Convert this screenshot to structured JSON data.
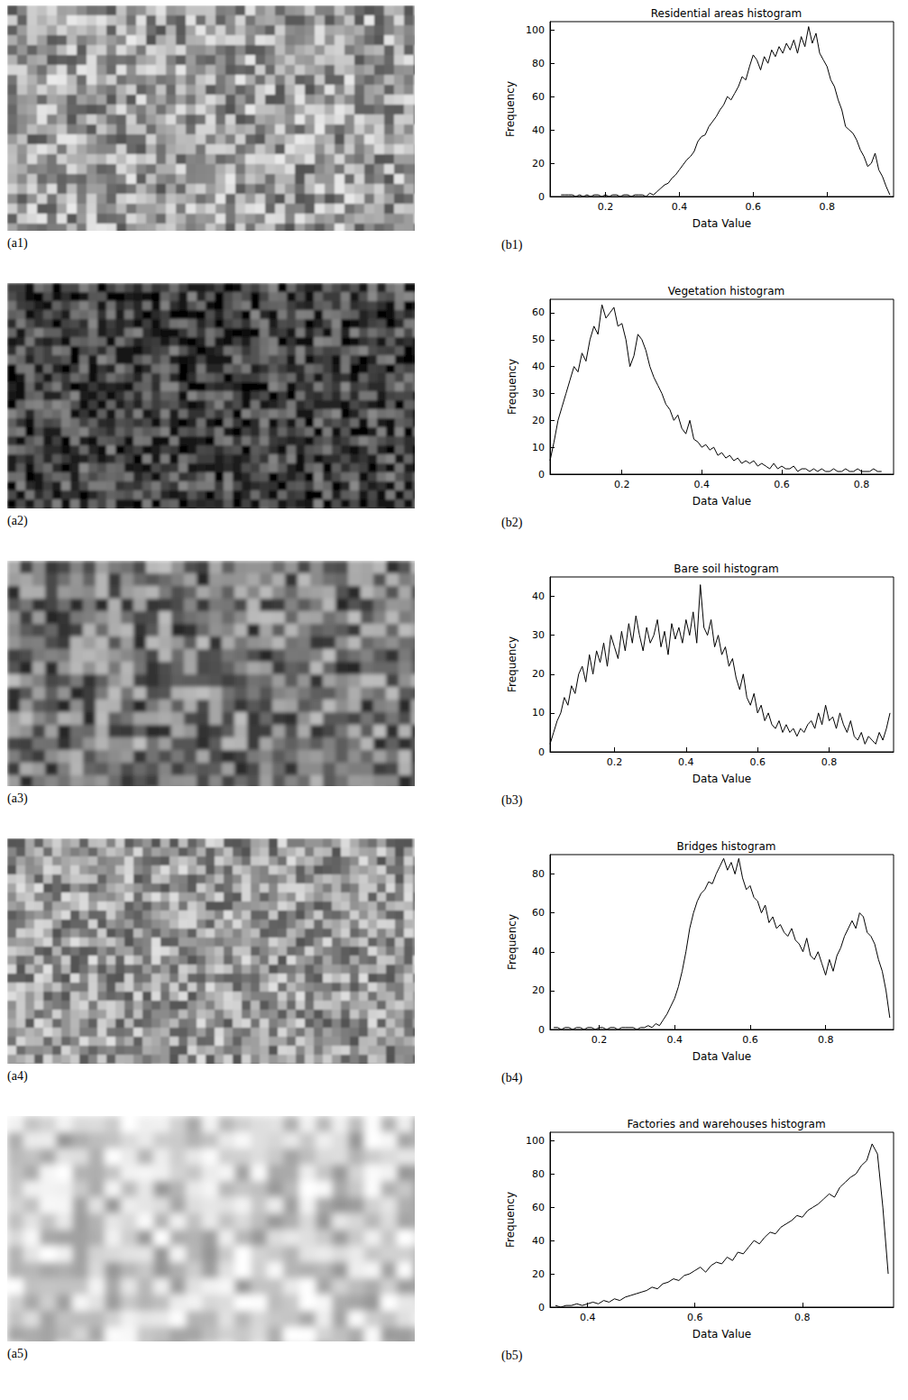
{
  "images": [
    {
      "label": "(a1)"
    },
    {
      "label": "(a2)"
    },
    {
      "label": "(a3)"
    },
    {
      "label": "(a4)"
    },
    {
      "label": "(a5)"
    }
  ],
  "chart_data": [
    {
      "type": "line",
      "title": "Residential areas histogram",
      "panel": "(b1)",
      "xlabel": "Data Value",
      "ylabel": "Frequency",
      "color": "#000000",
      "grid": false,
      "xlim": [
        0.05,
        0.98
      ],
      "ylim": [
        0,
        105
      ],
      "xticks": [
        0.2,
        0.4,
        0.6,
        0.8
      ],
      "yticks": [
        0,
        20,
        40,
        60,
        80,
        100
      ],
      "x": [
        0.08,
        0.09,
        0.1,
        0.11,
        0.12,
        0.13,
        0.14,
        0.15,
        0.16,
        0.17,
        0.18,
        0.19,
        0.2,
        0.21,
        0.22,
        0.23,
        0.24,
        0.25,
        0.26,
        0.27,
        0.28,
        0.29,
        0.3,
        0.31,
        0.32,
        0.33,
        0.34,
        0.35,
        0.36,
        0.37,
        0.38,
        0.39,
        0.4,
        0.41,
        0.42,
        0.43,
        0.44,
        0.45,
        0.46,
        0.47,
        0.48,
        0.49,
        0.5,
        0.51,
        0.52,
        0.53,
        0.54,
        0.55,
        0.56,
        0.57,
        0.58,
        0.59,
        0.6,
        0.61,
        0.62,
        0.63,
        0.64,
        0.65,
        0.66,
        0.67,
        0.68,
        0.69,
        0.7,
        0.71,
        0.72,
        0.73,
        0.74,
        0.75,
        0.76,
        0.77,
        0.78,
        0.79,
        0.8,
        0.81,
        0.82,
        0.83,
        0.84,
        0.85,
        0.86,
        0.87,
        0.88,
        0.89,
        0.9,
        0.91,
        0.92,
        0.93,
        0.94,
        0.95,
        0.96,
        0.97
      ],
      "values": [
        1,
        1,
        1,
        1,
        0,
        1,
        0,
        1,
        0,
        1,
        1,
        0,
        1,
        0,
        1,
        1,
        0,
        1,
        1,
        0,
        1,
        1,
        1,
        0,
        2,
        1,
        3,
        5,
        7,
        8,
        11,
        13,
        16,
        19,
        22,
        24,
        27,
        33,
        36,
        37,
        42,
        45,
        48,
        52,
        55,
        60,
        58,
        62,
        66,
        72,
        70,
        78,
        85,
        82,
        76,
        84,
        80,
        88,
        84,
        90,
        86,
        92,
        88,
        94,
        86,
        96,
        90,
        102,
        92,
        98,
        86,
        82,
        78,
        70,
        66,
        58,
        52,
        42,
        40,
        38,
        34,
        28,
        24,
        18,
        20,
        26,
        16,
        12,
        6,
        1
      ]
    },
    {
      "type": "line",
      "title": "Vegetation histogram",
      "panel": "(b2)",
      "xlabel": "Data Value",
      "ylabel": "Frequency",
      "color": "#000000",
      "grid": false,
      "xlim": [
        0.02,
        0.88
      ],
      "ylim": [
        0,
        65
      ],
      "xticks": [
        0.2,
        0.4,
        0.6,
        0.8
      ],
      "yticks": [
        0,
        10,
        20,
        30,
        40,
        50,
        60
      ],
      "x": [
        0.02,
        0.03,
        0.04,
        0.05,
        0.06,
        0.07,
        0.08,
        0.09,
        0.1,
        0.11,
        0.12,
        0.13,
        0.14,
        0.15,
        0.16,
        0.17,
        0.18,
        0.19,
        0.2,
        0.21,
        0.22,
        0.23,
        0.24,
        0.25,
        0.26,
        0.27,
        0.28,
        0.29,
        0.3,
        0.31,
        0.32,
        0.33,
        0.34,
        0.35,
        0.36,
        0.37,
        0.38,
        0.39,
        0.4,
        0.41,
        0.42,
        0.43,
        0.44,
        0.45,
        0.46,
        0.47,
        0.48,
        0.49,
        0.5,
        0.51,
        0.52,
        0.53,
        0.54,
        0.55,
        0.56,
        0.57,
        0.58,
        0.59,
        0.6,
        0.61,
        0.62,
        0.63,
        0.64,
        0.65,
        0.66,
        0.67,
        0.68,
        0.69,
        0.7,
        0.71,
        0.72,
        0.73,
        0.74,
        0.75,
        0.76,
        0.77,
        0.78,
        0.79,
        0.8,
        0.81,
        0.82,
        0.83,
        0.84,
        0.85
      ],
      "values": [
        5,
        12,
        20,
        25,
        30,
        35,
        40,
        38,
        45,
        42,
        50,
        55,
        52,
        63,
        58,
        60,
        62,
        55,
        56,
        50,
        40,
        44,
        52,
        50,
        46,
        40,
        36,
        33,
        30,
        26,
        24,
        20,
        22,
        17,
        15,
        20,
        13,
        12,
        10,
        11,
        9,
        10,
        7,
        8,
        6,
        7,
        5,
        6,
        4,
        5,
        4,
        5,
        3,
        4,
        3,
        2,
        4,
        2,
        3,
        2,
        2,
        3,
        1,
        2,
        2,
        1,
        2,
        1,
        2,
        1,
        1,
        2,
        1,
        1,
        2,
        1,
        1,
        2,
        1,
        1,
        1,
        2,
        1,
        1
      ]
    },
    {
      "type": "line",
      "title": "Bare soil histogram",
      "panel": "(b3)",
      "xlabel": "Data Value",
      "ylabel": "Frequency",
      "color": "#000000",
      "grid": false,
      "xlim": [
        0.02,
        0.98
      ],
      "ylim": [
        0,
        45
      ],
      "xticks": [
        0.2,
        0.4,
        0.6,
        0.8
      ],
      "yticks": [
        0,
        10,
        20,
        30,
        40
      ],
      "x": [
        0.02,
        0.03,
        0.04,
        0.05,
        0.06,
        0.07,
        0.08,
        0.09,
        0.1,
        0.11,
        0.12,
        0.13,
        0.14,
        0.15,
        0.16,
        0.17,
        0.18,
        0.19,
        0.2,
        0.21,
        0.22,
        0.23,
        0.24,
        0.25,
        0.26,
        0.27,
        0.28,
        0.29,
        0.3,
        0.31,
        0.32,
        0.33,
        0.34,
        0.35,
        0.36,
        0.37,
        0.38,
        0.39,
        0.4,
        0.41,
        0.42,
        0.43,
        0.44,
        0.45,
        0.46,
        0.47,
        0.48,
        0.49,
        0.5,
        0.51,
        0.52,
        0.53,
        0.54,
        0.55,
        0.56,
        0.57,
        0.58,
        0.59,
        0.6,
        0.61,
        0.62,
        0.63,
        0.64,
        0.65,
        0.66,
        0.67,
        0.68,
        0.69,
        0.7,
        0.71,
        0.72,
        0.73,
        0.74,
        0.75,
        0.76,
        0.77,
        0.78,
        0.79,
        0.8,
        0.81,
        0.82,
        0.83,
        0.84,
        0.85,
        0.86,
        0.87,
        0.88,
        0.89,
        0.9,
        0.91,
        0.92,
        0.93,
        0.94,
        0.95,
        0.96,
        0.97
      ],
      "values": [
        2,
        5,
        8,
        10,
        14,
        12,
        17,
        15,
        20,
        22,
        18,
        25,
        20,
        26,
        23,
        28,
        22,
        30,
        27,
        24,
        31,
        26,
        33,
        28,
        35,
        30,
        26,
        32,
        28,
        30,
        34,
        27,
        31,
        25,
        33,
        29,
        32,
        28,
        34,
        30,
        36,
        28,
        43,
        32,
        30,
        34,
        27,
        30,
        25,
        27,
        22,
        24,
        19,
        16,
        20,
        14,
        12,
        15,
        10,
        12,
        8,
        10,
        7,
        6,
        8,
        5,
        7,
        5,
        6,
        4,
        6,
        5,
        7,
        8,
        6,
        10,
        7,
        12,
        8,
        9,
        6,
        10,
        7,
        5,
        8,
        4,
        3,
        5,
        2,
        4,
        3,
        2,
        5,
        3,
        6,
        10
      ]
    },
    {
      "type": "line",
      "title": "Bridges histogram",
      "panel": "(b4)",
      "xlabel": "Data Value",
      "ylabel": "Frequency",
      "color": "#000000",
      "grid": false,
      "xlim": [
        0.07,
        0.98
      ],
      "ylim": [
        0,
        90
      ],
      "xticks": [
        0.2,
        0.4,
        0.6,
        0.8
      ],
      "yticks": [
        0,
        20,
        40,
        60,
        80
      ],
      "x": [
        0.08,
        0.09,
        0.1,
        0.11,
        0.12,
        0.13,
        0.14,
        0.15,
        0.16,
        0.17,
        0.18,
        0.19,
        0.2,
        0.21,
        0.22,
        0.23,
        0.24,
        0.25,
        0.26,
        0.27,
        0.28,
        0.29,
        0.3,
        0.31,
        0.32,
        0.33,
        0.34,
        0.35,
        0.36,
        0.37,
        0.38,
        0.39,
        0.4,
        0.41,
        0.42,
        0.43,
        0.44,
        0.45,
        0.46,
        0.47,
        0.48,
        0.49,
        0.5,
        0.51,
        0.52,
        0.53,
        0.54,
        0.55,
        0.56,
        0.57,
        0.58,
        0.59,
        0.6,
        0.61,
        0.62,
        0.63,
        0.64,
        0.65,
        0.66,
        0.67,
        0.68,
        0.69,
        0.7,
        0.71,
        0.72,
        0.73,
        0.74,
        0.75,
        0.76,
        0.77,
        0.78,
        0.79,
        0.8,
        0.81,
        0.82,
        0.83,
        0.84,
        0.85,
        0.86,
        0.87,
        0.88,
        0.89,
        0.9,
        0.91,
        0.92,
        0.93,
        0.94,
        0.95,
        0.96,
        0.97
      ],
      "values": [
        1,
        1,
        0,
        1,
        1,
        0,
        1,
        1,
        0,
        1,
        1,
        0,
        1,
        1,
        0,
        1,
        1,
        0,
        1,
        1,
        1,
        1,
        0,
        1,
        1,
        2,
        1,
        3,
        2,
        5,
        8,
        12,
        16,
        22,
        30,
        40,
        52,
        60,
        66,
        70,
        72,
        76,
        75,
        80,
        84,
        88,
        82,
        86,
        80,
        88,
        78,
        72,
        74,
        68,
        66,
        60,
        64,
        55,
        58,
        52,
        54,
        50,
        48,
        52,
        46,
        44,
        40,
        47,
        38,
        36,
        40,
        34,
        28,
        36,
        30,
        38,
        42,
        48,
        52,
        56,
        52,
        60,
        58,
        50,
        48,
        44,
        36,
        30,
        20,
        6
      ]
    },
    {
      "type": "line",
      "title": "Factories and warehouses histogram",
      "panel": "(b5)",
      "xlabel": "Data Value",
      "ylabel": "Frequency",
      "color": "#000000",
      "grid": false,
      "xlim": [
        0.33,
        0.97
      ],
      "ylim": [
        0,
        105
      ],
      "xticks": [
        0.4,
        0.6,
        0.8
      ],
      "yticks": [
        0,
        20,
        40,
        60,
        80,
        100
      ],
      "x": [
        0.34,
        0.35,
        0.36,
        0.37,
        0.38,
        0.39,
        0.4,
        0.41,
        0.42,
        0.43,
        0.44,
        0.45,
        0.46,
        0.47,
        0.48,
        0.49,
        0.5,
        0.51,
        0.52,
        0.53,
        0.54,
        0.55,
        0.56,
        0.57,
        0.58,
        0.59,
        0.6,
        0.61,
        0.62,
        0.63,
        0.64,
        0.65,
        0.66,
        0.67,
        0.68,
        0.69,
        0.7,
        0.71,
        0.72,
        0.73,
        0.74,
        0.75,
        0.76,
        0.77,
        0.78,
        0.79,
        0.8,
        0.81,
        0.82,
        0.83,
        0.84,
        0.85,
        0.86,
        0.87,
        0.88,
        0.89,
        0.9,
        0.91,
        0.92,
        0.93,
        0.94,
        0.95,
        0.96
      ],
      "values": [
        1,
        0,
        1,
        1,
        2,
        1,
        2,
        3,
        2,
        4,
        3,
        5,
        4,
        6,
        7,
        8,
        9,
        10,
        12,
        11,
        14,
        15,
        17,
        16,
        19,
        20,
        22,
        24,
        21,
        25,
        27,
        26,
        30,
        28,
        33,
        32,
        36,
        40,
        38,
        42,
        45,
        44,
        48,
        50,
        52,
        55,
        54,
        58,
        60,
        62,
        65,
        68,
        66,
        72,
        75,
        78,
        80,
        85,
        88,
        98,
        92,
        60,
        20
      ]
    }
  ]
}
